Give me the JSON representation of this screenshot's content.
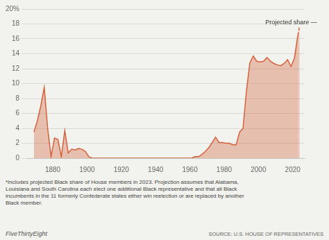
{
  "chart_data": {
    "type": "area",
    "xlim": [
      1865,
      2027
    ],
    "xticks": [
      1880,
      1900,
      1920,
      1940,
      1960,
      1980,
      2000,
      2020
    ],
    "ylim": [
      0,
      20
    ],
    "yticks": [
      0,
      2,
      4,
      6,
      8,
      10,
      12,
      14,
      16,
      18,
      {
        "value": 20,
        "label": "20%"
      }
    ],
    "grid": "y",
    "series": [
      {
        "color": "#d4603a",
        "line_style": "solid",
        "x": [
          1869,
          1871,
          1873,
          1875,
          1877,
          1879,
          1881,
          1883,
          1885,
          1887,
          1889,
          1891,
          1893,
          1895,
          1897,
          1899,
          1901,
          1903,
          1907,
          1911,
          1915,
          1919,
          1923,
          1927,
          1931,
          1935,
          1939,
          1943,
          1947,
          1951,
          1955,
          1959,
          1961,
          1963,
          1965,
          1967,
          1969,
          1971,
          1973,
          1975,
          1977,
          1979,
          1981,
          1983,
          1985,
          1987,
          1989,
          1991,
          1993,
          1995,
          1997,
          1999,
          2001,
          2003,
          2005,
          2007,
          2009,
          2011,
          2013,
          2015,
          2017,
          2019,
          2021,
          2023
        ],
        "values": [
          3.5,
          5.0,
          7.0,
          9.5,
          4.0,
          0.2,
          2.7,
          2.5,
          0.2,
          3.7,
          0.7,
          1.2,
          1.1,
          1.3,
          1.2,
          0.9,
          0.2,
          0.0,
          0.0,
          0.0,
          0.0,
          0.0,
          0.0,
          0.0,
          0.0,
          0.0,
          0.0,
          0.0,
          0.0,
          0.0,
          0.0,
          0.0,
          0.0,
          0.2,
          0.2,
          0.5,
          0.9,
          1.4,
          2.1,
          2.8,
          2.1,
          2.1,
          2.0,
          2.0,
          1.8,
          1.8,
          3.5,
          4.0,
          9.0,
          12.8,
          13.7,
          13.0,
          12.9,
          13.0,
          13.5,
          13.0,
          12.7,
          12.5,
          12.4,
          12.7,
          13.2,
          12.3,
          13.4,
          16.5
        ]
      },
      {
        "color": "#d4603a",
        "line_style": "dashed",
        "x": [
          2023,
          2024
        ],
        "values": [
          16.5,
          17.7
        ]
      }
    ],
    "annotations": [
      {
        "text": "Projected share —",
        "x": 2004,
        "y": 18.2
      }
    ],
    "footnote": "*Includes projected Black share of House members in 2023. Projection assumes that Alabama,\nLouisiana and South Carolina each elect one additional Black representative and that all Black\nincumbents in the 11 formerly Confederate states either win reelection or are replaced by another\nBlack member.",
    "source": [
      "FiveThirtyEight",
      "SOURCE: U.S. HOUSE OF REPRESENTATIVES"
    ]
  }
}
